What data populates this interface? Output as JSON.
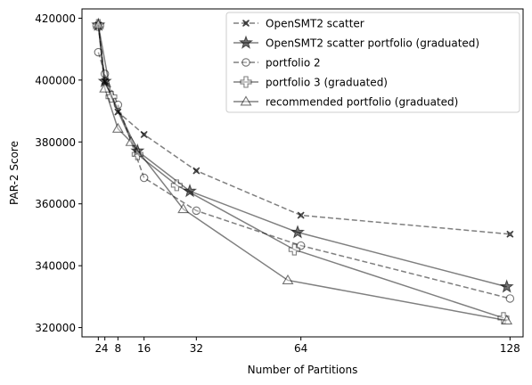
{
  "chart_data": {
    "type": "line",
    "title": "",
    "xlabel": "Number of Partitions",
    "ylabel": "PAR-2 Score",
    "xlim": [
      -3,
      132
    ],
    "ylim": [
      317000,
      423000
    ],
    "xticks": [
      2,
      4,
      8,
      16,
      32,
      64,
      128
    ],
    "xtick_labels": [
      "2",
      "4",
      "8",
      "16",
      "32",
      "64",
      "128"
    ],
    "yticks": [
      320000,
      340000,
      360000,
      380000,
      400000,
      420000
    ],
    "ytick_labels": [
      "320000",
      "340000",
      "360000",
      "380000",
      "400000",
      "420000"
    ],
    "grid": false,
    "legend_position": "top-right",
    "series": [
      {
        "name": "OpenSMT2 scatter",
        "color": "#000000",
        "linestyle": "dashed",
        "marker": "x-filled",
        "points": [
          [
            2,
            417800
          ],
          [
            4,
            399600
          ],
          [
            8,
            389700
          ],
          [
            16,
            382400
          ],
          [
            32,
            370700
          ],
          [
            64,
            356300
          ],
          [
            128,
            350200
          ]
        ]
      },
      {
        "name": "OpenSMT2 scatter portfolio (graduated)",
        "color": "#000000",
        "linestyle": "solid",
        "marker": "star",
        "points": [
          [
            2,
            417800
          ],
          [
            4,
            399600
          ],
          [
            14,
            377100
          ],
          [
            30,
            364100
          ],
          [
            63,
            350800
          ],
          [
            127,
            333200
          ]
        ]
      },
      {
        "name": "portfolio 2",
        "color": "#000000",
        "linestyle": "dashed",
        "marker": "circle",
        "points": [
          [
            2,
            409000
          ],
          [
            4,
            402000
          ],
          [
            8,
            392000
          ],
          [
            16,
            368400
          ],
          [
            32,
            357800
          ],
          [
            64,
            346500
          ],
          [
            128,
            329400
          ]
        ]
      },
      {
        "name": "portfolio 3 (graduated)",
        "color": "#000000",
        "linestyle": "solid",
        "marker": "plus",
        "points": [
          [
            2,
            417800
          ],
          [
            6,
            394600
          ],
          [
            14,
            376000
          ],
          [
            26,
            366000
          ],
          [
            62,
            345200
          ],
          [
            126,
            323100
          ]
        ]
      },
      {
        "name": "recommended portfolio (graduated)",
        "color": "#000000",
        "linestyle": "solid",
        "marker": "triangle",
        "points": [
          [
            2,
            417800
          ],
          [
            4,
            397300
          ],
          [
            8,
            384300
          ],
          [
            12,
            380000
          ],
          [
            28,
            358300
          ],
          [
            60,
            335300
          ],
          [
            127,
            322300
          ]
        ]
      }
    ]
  }
}
